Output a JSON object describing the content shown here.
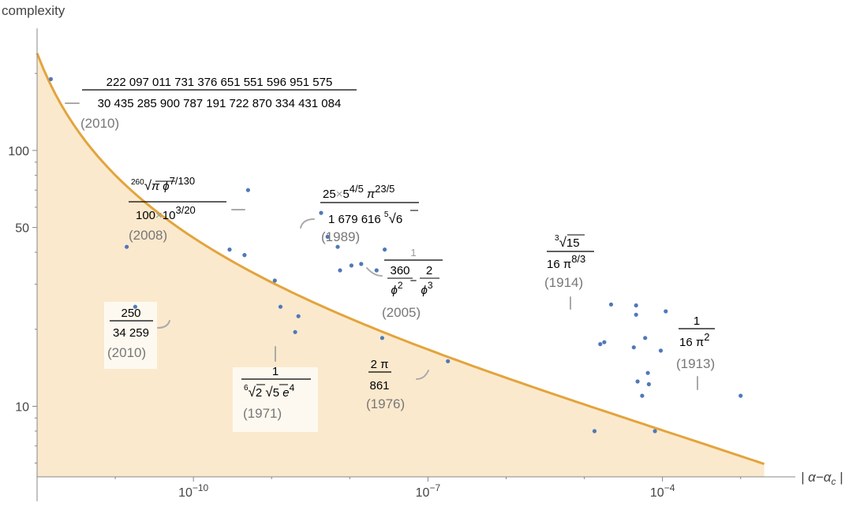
{
  "chart_data": {
    "type": "scatter",
    "xscale": "log10",
    "yscale": "log10",
    "xlim": [
      1e-12,
      0.005
    ],
    "ylim": [
      5.3,
      300
    ],
    "xlabel": "| α−α",
    "xlabel_sub": "c",
    "xlabel_end": " |",
    "ylabel": "complexity",
    "xticks": [
      {
        "value": 1e-10,
        "base": "10",
        "exp": "−10"
      },
      {
        "value": 1e-07,
        "base": "10",
        "exp": "−7"
      },
      {
        "value": 0.0001,
        "base": "10",
        "exp": "−4"
      }
    ],
    "yticks": [
      {
        "value": 10,
        "label": "10"
      },
      {
        "value": 50,
        "label": "50"
      },
      {
        "value": 100,
        "label": "100"
      }
    ],
    "bound_curve": {
      "x_start": 1e-12,
      "x_end": 0.002,
      "y_start": 240,
      "y_end": 5.95,
      "fill": "#fbe9cd",
      "stroke": "#e3a43c"
    },
    "point_color": "#4f79b8",
    "points": [
      {
        "x": 1.5e-12,
        "y": 190
      },
      {
        "x": 5e-10,
        "y": 70
      },
      {
        "x": 1.4e-11,
        "y": 42
      },
      {
        "x": 1.8e-11,
        "y": 24.5
      },
      {
        "x": 2.9e-10,
        "y": 41
      },
      {
        "x": 4.5e-10,
        "y": 39
      },
      {
        "x": 1.1e-09,
        "y": 31
      },
      {
        "x": 1.3e-09,
        "y": 24.5
      },
      {
        "x": 2.2e-09,
        "y": 22.5
      },
      {
        "x": 2e-09,
        "y": 19.5
      },
      {
        "x": 4.3e-09,
        "y": 57
      },
      {
        "x": 5.2e-09,
        "y": 46
      },
      {
        "x": 7e-09,
        "y": 42
      },
      {
        "x": 7.5e-09,
        "y": 34
      },
      {
        "x": 1.05e-08,
        "y": 35.5
      },
      {
        "x": 1.4e-08,
        "y": 36
      },
      {
        "x": 2.2e-08,
        "y": 34
      },
      {
        "x": 2.8e-08,
        "y": 41
      },
      {
        "x": 2.6e-08,
        "y": 18.5
      },
      {
        "x": 1.8e-07,
        "y": 15
      },
      {
        "x": 1.35e-05,
        "y": 8
      },
      {
        "x": 1.6e-05,
        "y": 17.5
      },
      {
        "x": 1.8e-05,
        "y": 17.8
      },
      {
        "x": 2.2e-05,
        "y": 25
      },
      {
        "x": 4.3e-05,
        "y": 17
      },
      {
        "x": 4.6e-05,
        "y": 24.8
      },
      {
        "x": 4.6e-05,
        "y": 22.8
      },
      {
        "x": 4.8e-05,
        "y": 12.5
      },
      {
        "x": 5.5e-05,
        "y": 11
      },
      {
        "x": 6e-05,
        "y": 18.5
      },
      {
        "x": 6.5e-05,
        "y": 13.5
      },
      {
        "x": 6.7e-05,
        "y": 12.2
      },
      {
        "x": 8e-05,
        "y": 8
      },
      {
        "x": 9.5e-05,
        "y": 16.5
      },
      {
        "x": 0.00011,
        "y": 23.5
      },
      {
        "x": 0.001,
        "y": 11
      }
    ]
  },
  "annotations": {
    "a2010_top": {
      "num": "222 097 011 731 376 651 551 596 951 575",
      "den": "30 435 285 900 787 191 722 870 334 431 084",
      "year": "(2010)"
    },
    "a2008": {
      "num_index": "260",
      "num_rad": "π",
      "num_tail": "ϕ",
      "num_exp": "7/130",
      "den": "100",
      "times": "×",
      "den_b": "10",
      "den_exp": "3/20",
      "year": "(2008)"
    },
    "a1989": {
      "num_a": "25",
      "times": "×",
      "num_b": "5",
      "num_b_exp": "4/5",
      "num_c": "π",
      "num_c_exp": "23/5",
      "den": "1 679 616",
      "den_index": "5",
      "den_rad": "6",
      "year": "(1989)"
    },
    "a2005": {
      "top": "1",
      "f1_num": "360",
      "f1_den": "ϕ",
      "f1_den_exp": "2",
      "minus": "−",
      "f2_num": "2",
      "f2_den": "ϕ",
      "f2_den_exp": "3",
      "year": "(2005)"
    },
    "a1914": {
      "num_index": "3",
      "num_rad": "15",
      "den": "16 π",
      "den_exp": "8/3",
      "year": "(1914)"
    },
    "a2010_low": {
      "num": "250",
      "den": "34 259",
      "year": "(2010)"
    },
    "a1971": {
      "num": "1",
      "den_i1": "6",
      "den_r1": "2",
      "den_r2": "5",
      "den_e": "e",
      "den_e_exp": "4",
      "year": "(1971)"
    },
    "a1976": {
      "num": "2 π",
      "den": "861",
      "year": "(1976)"
    },
    "a1913": {
      "num": "1",
      "den": "16 π",
      "den_exp": "2",
      "year": "(1913)"
    }
  }
}
